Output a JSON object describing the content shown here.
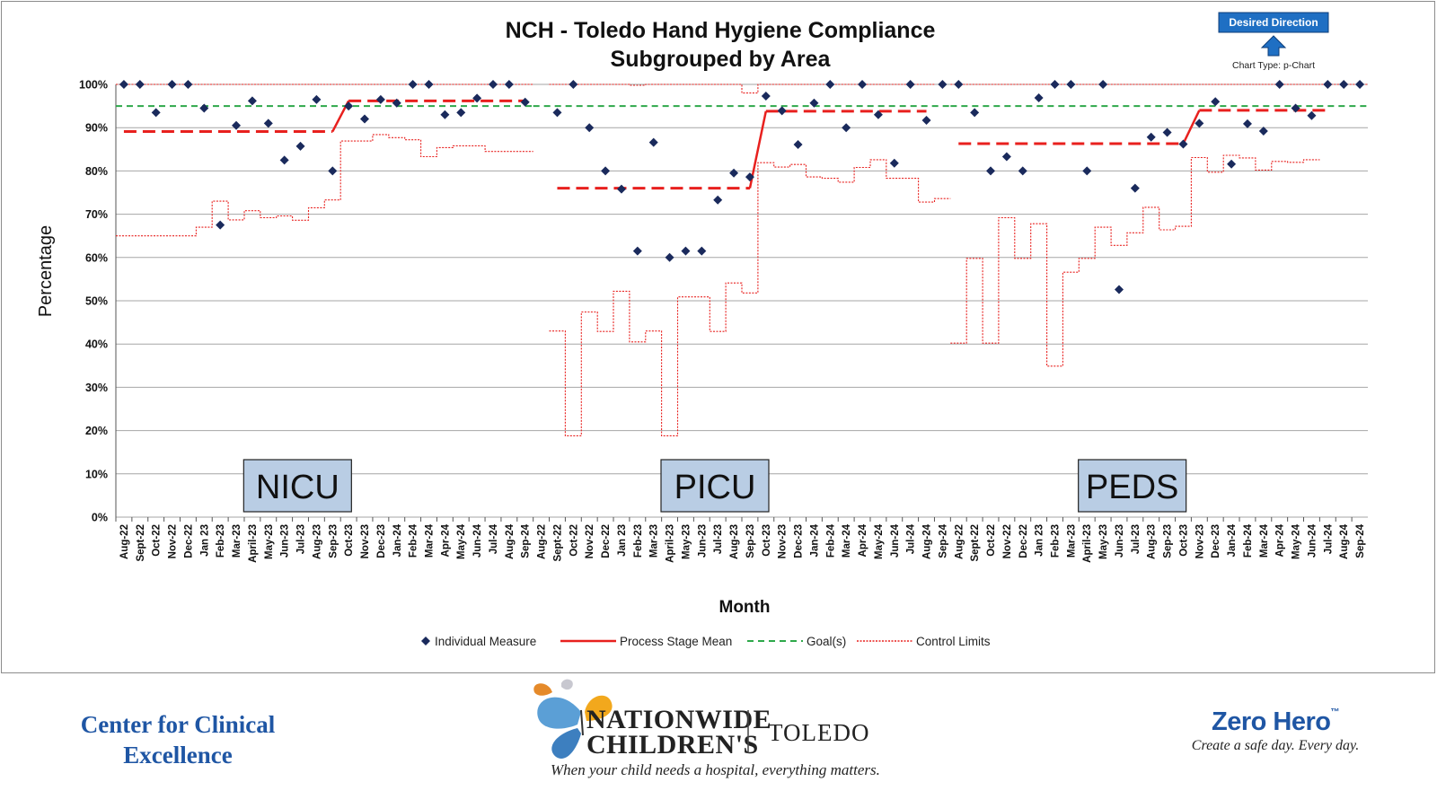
{
  "chart_data": {
    "type": "line",
    "title": [
      "NCH - Toledo Hand Hygiene Compliance",
      "Subgrouped by Area"
    ],
    "ylabel": "Percentage",
    "xlabel": "Month",
    "ylim": [
      0,
      100
    ],
    "yticks": [
      "0%",
      "10%",
      "20%",
      "30%",
      "40%",
      "50%",
      "60%",
      "70%",
      "80%",
      "90%",
      "100%"
    ],
    "goal": 95,
    "desired_direction": "Desired Direction",
    "desired_direction_arrow": "up",
    "chart_type_note": "Chart Type: p-Chart",
    "legend": [
      "Individual Measure",
      "Process Stage Mean",
      "Goal(s)",
      "Control Limits"
    ],
    "legend_placement": "bottom",
    "gridlines": true,
    "colors": {
      "individual": "#1a2a5c",
      "mean": "#e8201e",
      "goal": "#2ea84a",
      "control": "#e8201e",
      "grid": "#a6a6a6",
      "panel_fill": "#b9cde4",
      "direction_box": "#1f6fc3"
    },
    "panels": [
      {
        "name": "NICU",
        "months": [
          "Aug-22",
          "Sept-22",
          "Oct-22",
          "Nov-22",
          "Dec-22",
          "Jan 23",
          "Feb-23",
          "Mar-23",
          "April-23",
          "May-23",
          "Jun-23",
          "Jul-23",
          "Aug-23",
          "Sep-23",
          "Oct-23",
          "Nov-23",
          "Dec-23",
          "Jan-24",
          "Feb-24",
          "Mar-24",
          "Apr-24",
          "May-24",
          "Jun-24",
          "Jul-24",
          "Aug-24",
          "Sep-24"
        ],
        "individual": [
          100,
          100,
          93.5,
          100,
          100,
          94.5,
          67.5,
          90.5,
          96.2,
          91,
          82.5,
          85.7,
          96.5,
          80,
          95,
          92,
          96.5,
          95.7,
          100,
          100,
          93,
          93.5,
          96.8,
          100,
          100,
          95.9
        ],
        "mean_stages": [
          {
            "start": 0,
            "end": 13,
            "value": 89.1
          },
          {
            "start": 14,
            "end": 25,
            "value": 96.2
          }
        ],
        "ucl": [
          100,
          100,
          100,
          100,
          100,
          100,
          100,
          100,
          100,
          100,
          100,
          100,
          100,
          100,
          100,
          100,
          100,
          100,
          100,
          100,
          100,
          100,
          100,
          100,
          100,
          100
        ],
        "lcl": [
          65,
          65,
          65,
          65,
          65,
          67,
          73,
          68.7,
          70.8,
          69.2,
          69.6,
          68.6,
          71.5,
          73.3,
          86.9,
          86.9,
          88.4,
          87.7,
          87.2,
          83.3,
          85.4,
          85.8,
          85.8,
          84.5,
          84.5,
          84.5
        ]
      },
      {
        "name": "PICU",
        "months": [
          "Aug-22",
          "Sept-22",
          "Oct-22",
          "Nov-22",
          "Dec-22",
          "Jan 23",
          "Feb-23",
          "Mar-23",
          "April-23",
          "May-23",
          "Jun-23",
          "Jul-23",
          "Aug-23",
          "Sep-23",
          "Oct-23",
          "Nov-23",
          "Dec-23",
          "Jan-24",
          "Feb-24",
          "Mar-24",
          "Apr-24",
          "May-24",
          "Jun-24",
          "Jul-24",
          "Aug-24",
          "Sep-24"
        ],
        "individual": [
          null,
          93.5,
          100,
          90,
          80,
          75.8,
          61.5,
          86.6,
          60,
          61.5,
          61.5,
          73.3,
          79.5,
          78.6,
          97.3,
          93.9,
          86.1,
          95.7,
          100,
          90,
          100,
          93,
          81.8,
          100,
          91.7,
          100
        ],
        "mean_stages": [
          {
            "start": 1,
            "end": 13,
            "value": 76
          },
          {
            "start": 14,
            "end": 24,
            "value": 93.8
          }
        ],
        "ucl": [
          null,
          100,
          100,
          100,
          100,
          100,
          99.8,
          100,
          100,
          100,
          100,
          100,
          100,
          98,
          100,
          100,
          100,
          100,
          100,
          100,
          100,
          100,
          100,
          100,
          100,
          null
        ],
        "lcl": [
          null,
          43,
          18.8,
          47.4,
          42.9,
          52.2,
          40.5,
          43,
          18.8,
          50.9,
          50.9,
          42.9,
          54.1,
          51.8,
          81.9,
          80.9,
          81.5,
          78.6,
          78.3,
          77.4,
          80.8,
          82.6,
          78.3,
          78.3,
          72.8,
          73.6
        ]
      },
      {
        "name": "PEDS",
        "months": [
          "Aug-22",
          "Sept-22",
          "Oct-22",
          "Nov-22",
          "Dec-22",
          "Jan 23",
          "Feb-23",
          "Mar-23",
          "April-23",
          "May-23",
          "Jun-23",
          "Jul-23",
          "Aug-23",
          "Sep-23",
          "Oct-23",
          "Nov-23",
          "Dec-23",
          "Jan-24",
          "Feb-24",
          "Mar-24",
          "Apr-24",
          "May-24",
          "Jun-24",
          "Jul-24",
          "Aug-24",
          "Sep-24"
        ],
        "individual": [
          100,
          93.5,
          80,
          83.3,
          80,
          96.9,
          100,
          100,
          80,
          100,
          52.6,
          76,
          87.8,
          88.9,
          86.2,
          91,
          96,
          81.6,
          90.9,
          89.2,
          100,
          94.5,
          92.8,
          100,
          100,
          100
        ],
        "mean_stages": [
          {
            "start": 0,
            "end": 14,
            "value": 86.3
          },
          {
            "start": 15,
            "end": 23,
            "value": 94
          }
        ],
        "ucl": [
          100,
          100,
          100,
          100,
          100,
          100,
          100,
          100,
          100,
          100,
          100,
          100,
          100,
          100,
          100,
          100,
          100,
          100,
          100,
          100,
          100,
          100,
          100,
          100,
          100,
          100
        ],
        "lcl": [
          40.2,
          59.8,
          40.2,
          69.2,
          59.8,
          67.8,
          34.9,
          56.6,
          59.8,
          67,
          62.8,
          65.7,
          71.6,
          66.4,
          67.2,
          83.1,
          79.7,
          83.6,
          83,
          80.2,
          82.2,
          82,
          82.6,
          null,
          null,
          null
        ]
      }
    ]
  },
  "footer": {
    "left_text": "Center for Clinical Excellence",
    "logo_name_line1": "NATIONWIDE",
    "logo_name_line2": "CHILDREN'S",
    "logo_city": "TOLEDO",
    "logo_tagline": "When your child needs a hospital, everything matters.",
    "right_brand": "Zero Hero",
    "right_brand_tm": "™",
    "right_tagline": "Create a safe day. Every day."
  }
}
